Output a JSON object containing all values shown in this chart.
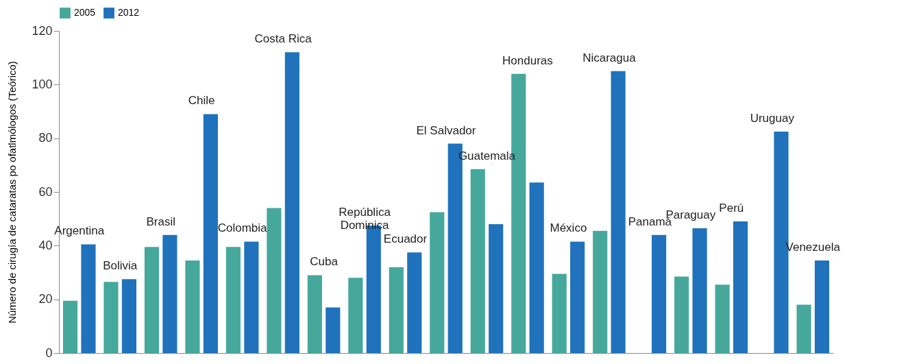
{
  "chart_data": {
    "type": "bar",
    "ylabel": "Número de cirugía de cataratas po ofatlmólogos (Teórico)",
    "categories": [
      "Argentina",
      "Bolivia",
      "Brasil",
      "Chile",
      "Colombia",
      "Costa Rica",
      "Cuba",
      "República\nDominica",
      "Ecuador",
      "El Salvador",
      "Guatemala",
      "Honduras",
      "México",
      "Nicaragua",
      "Panamá",
      "Paraguay",
      "Perú",
      "Uruguay",
      "Venezuela"
    ],
    "series": [
      {
        "name": "2005",
        "color": "#45a89b",
        "values": [
          19.5,
          26.5,
          39.5,
          34.5,
          39.5,
          54,
          29,
          28,
          32,
          52.5,
          68.5,
          104,
          29.5,
          45.5,
          null,
          28.5,
          25.5,
          null,
          18
        ]
      },
      {
        "name": "2012",
        "color": "#1f72bb",
        "values": [
          40.5,
          27.5,
          44,
          89,
          41.5,
          112,
          17,
          47.5,
          37.5,
          78,
          48,
          63.5,
          41.5,
          105,
          44,
          46.5,
          49,
          82.5,
          34.5
        ]
      }
    ],
    "ylim": [
      0,
      120
    ],
    "yticks": [
      0,
      20,
      40,
      60,
      80,
      100,
      120
    ],
    "grid": false,
    "legend": "top",
    "tick_labels": "y"
  }
}
